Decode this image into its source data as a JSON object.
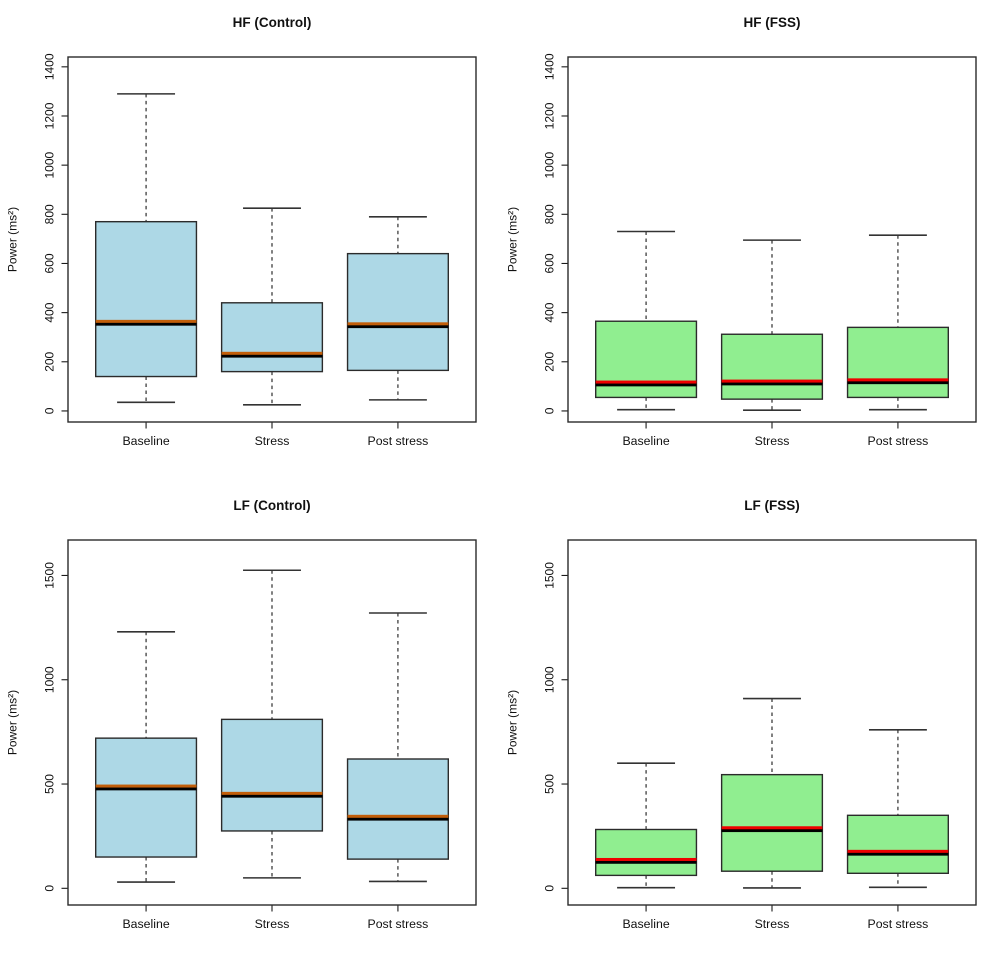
{
  "figure": {
    "background": "#ffffff",
    "frame_color": "#2b2b2b",
    "whisker_color": "#1a1a1a",
    "cap_color": "#333333",
    "tick_color": "#1a1a1a",
    "text_color": "#111111"
  },
  "chart_data": [
    {
      "type": "boxplot",
      "title": "HF (Control)",
      "ylabel": "Power (ms²)",
      "categories": [
        "Baseline",
        "Stress",
        "Post stress"
      ],
      "yticks": [
        0,
        200,
        400,
        600,
        800,
        1000,
        1200,
        1400
      ],
      "y_range": [
        -45,
        1440
      ],
      "box_fill": "#ADD8E6",
      "median_color": "#C25E0A",
      "series": [
        {
          "name": "Baseline",
          "min": 35,
          "q1": 140,
          "median": 360,
          "q3": 770,
          "max": 1290
        },
        {
          "name": "Stress",
          "min": 25,
          "q1": 160,
          "median": 230,
          "q3": 440,
          "max": 825
        },
        {
          "name": "Post stress",
          "min": 45,
          "q1": 165,
          "median": 350,
          "q3": 640,
          "max": 790
        }
      ]
    },
    {
      "type": "boxplot",
      "title": "HF (FSS)",
      "ylabel": "Power (ms²)",
      "categories": [
        "Baseline",
        "Stress",
        "Post stress"
      ],
      "yticks": [
        0,
        200,
        400,
        600,
        800,
        1000,
        1200,
        1400
      ],
      "y_range": [
        -45,
        1440
      ],
      "box_fill": "#90EE90",
      "median_color": "#EE0000",
      "series": [
        {
          "name": "Baseline",
          "min": 5,
          "q1": 55,
          "median": 113,
          "q3": 365,
          "max": 730
        },
        {
          "name": "Stress",
          "min": 3,
          "q1": 48,
          "median": 117,
          "q3": 312,
          "max": 695
        },
        {
          "name": "Post stress",
          "min": 5,
          "q1": 55,
          "median": 122,
          "q3": 340,
          "max": 715
        }
      ]
    },
    {
      "type": "boxplot",
      "title": "LF (Control)",
      "ylabel": "Power (ms²)",
      "categories": [
        "Baseline",
        "Stress",
        "Post stress"
      ],
      "yticks": [
        0,
        500,
        1000,
        1500
      ],
      "y_range": [
        -80,
        1670
      ],
      "box_fill": "#ADD8E6",
      "median_color": "#C25E0A",
      "series": [
        {
          "name": "Baseline",
          "min": 30,
          "q1": 150,
          "median": 485,
          "q3": 720,
          "max": 1230
        },
        {
          "name": "Stress",
          "min": 50,
          "q1": 275,
          "median": 450,
          "q3": 810,
          "max": 1525
        },
        {
          "name": "Post stress",
          "min": 33,
          "q1": 140,
          "median": 340,
          "q3": 620,
          "max": 1320
        }
      ]
    },
    {
      "type": "boxplot",
      "title": "LF (FSS)",
      "ylabel": "Power (ms²)",
      "categories": [
        "Baseline",
        "Stress",
        "Post stress"
      ],
      "yticks": [
        0,
        500,
        1000,
        1500
      ],
      "y_range": [
        -80,
        1670
      ],
      "box_fill": "#90EE90",
      "median_color": "#EE0000",
      "series": [
        {
          "name": "Baseline",
          "min": 3,
          "q1": 62,
          "median": 133,
          "q3": 282,
          "max": 600
        },
        {
          "name": "Stress",
          "min": 2,
          "q1": 82,
          "median": 285,
          "q3": 545,
          "max": 910
        },
        {
          "name": "Post stress",
          "min": 5,
          "q1": 72,
          "median": 172,
          "q3": 350,
          "max": 760
        }
      ]
    }
  ]
}
